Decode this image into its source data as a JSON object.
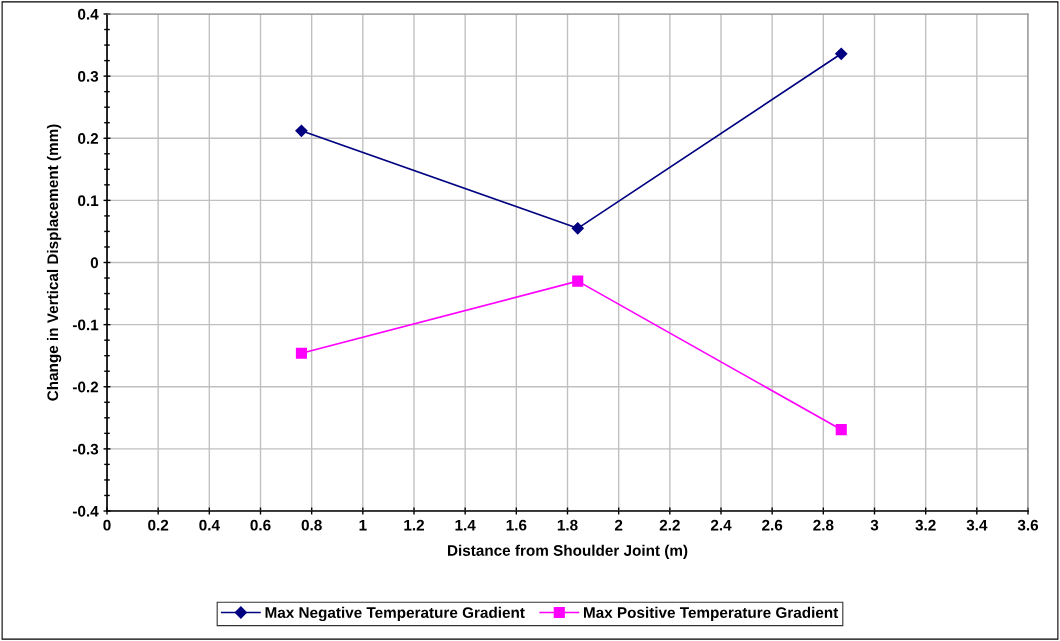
{
  "chart_data": {
    "type": "line",
    "xlabel": "Distance from Shoulder Joint (m)",
    "ylabel": "Change in Vertical Displacement (mm)",
    "x": [
      0.76,
      1.84,
      2.87
    ],
    "series": [
      {
        "name": "Max Negative Temperature Gradient",
        "color": "#000080",
        "values": [
          0.212,
          0.055,
          0.336
        ],
        "marker": "diamond"
      },
      {
        "name": "Max Positive Temperature Gradient",
        "color": "#ff00ff",
        "values": [
          -0.146,
          -0.03,
          -0.269
        ],
        "marker": "square"
      }
    ],
    "xlim": [
      0,
      3.6
    ],
    "xticks": [
      0,
      0.2,
      0.4,
      0.6,
      0.8,
      1,
      1.2,
      1.4,
      1.6,
      1.8,
      2,
      2.2,
      2.4,
      2.6,
      2.8,
      3,
      3.2,
      3.4,
      3.6
    ],
    "ylim": [
      -0.4,
      0.4
    ],
    "yticks": [
      -0.4,
      -0.3,
      -0.2,
      -0.1,
      0,
      0.1,
      0.2,
      0.3,
      0.4
    ],
    "grid": true,
    "legend": "bottom",
    "line_style": "solid"
  }
}
